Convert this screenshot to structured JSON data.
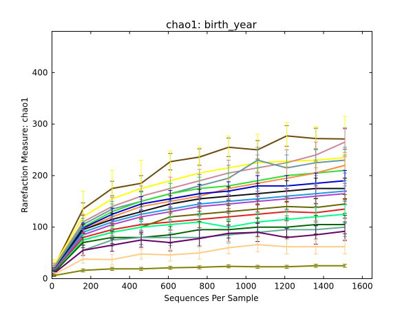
{
  "chart_data": {
    "type": "line",
    "title": "chao1: birth_year",
    "xlabel": "Sequences Per Sample",
    "ylabel": "Rarefaction Measure: chao1",
    "xlim": [
      0,
      1650
    ],
    "ylim": [
      0,
      480
    ],
    "xticks": [
      0,
      200,
      400,
      600,
      800,
      1000,
      1200,
      1400,
      1600
    ],
    "yticks": [
      0,
      100,
      200,
      300,
      400
    ],
    "grid": false,
    "legend": "none",
    "x": [
      10,
      160,
      310,
      460,
      610,
      760,
      910,
      1060,
      1210,
      1360,
      1510
    ],
    "series": [
      {
        "color": "#6b4a0a",
        "values": [
          22,
          135,
          175,
          185,
          227,
          236,
          255,
          250,
          277,
          272,
          271
        ],
        "err": [
          8,
          12,
          14,
          15,
          16,
          16,
          18,
          18,
          20,
          20,
          20
        ]
      },
      {
        "color": "#ffff00",
        "values": [
          25,
          120,
          155,
          175,
          190,
          205,
          215,
          225,
          228,
          230,
          235
        ],
        "err": [
          12,
          50,
          55,
          55,
          58,
          50,
          62,
          55,
          75,
          65,
          80
        ]
      },
      {
        "color": "#cc8899",
        "values": [
          22,
          110,
          140,
          160,
          175,
          190,
          205,
          215,
          225,
          240,
          265
        ],
        "err": [
          8,
          15,
          18,
          20,
          22,
          22,
          25,
          25,
          25,
          25,
          28
        ]
      },
      {
        "color": "#669999",
        "values": [
          20,
          105,
          135,
          150,
          165,
          180,
          195,
          230,
          215,
          225,
          230
        ],
        "err": [
          6,
          12,
          15,
          18,
          20,
          22,
          25,
          25,
          25,
          25,
          25
        ]
      },
      {
        "color": "#33dd33",
        "values": [
          18,
          100,
          130,
          150,
          165,
          175,
          180,
          190,
          200,
          205,
          210
        ],
        "err": [
          6,
          12,
          15,
          18,
          20,
          22,
          25,
          25,
          25,
          25,
          30
        ]
      },
      {
        "color": "#ff8844",
        "values": [
          18,
          95,
          120,
          140,
          150,
          160,
          175,
          185,
          195,
          205,
          220
        ],
        "err": [
          6,
          10,
          12,
          14,
          16,
          18,
          20,
          22,
          22,
          22,
          25
        ]
      },
      {
        "color": "#0000cc",
        "values": [
          16,
          98,
          125,
          145,
          155,
          165,
          170,
          180,
          180,
          185,
          190
        ],
        "err": [
          5,
          10,
          12,
          14,
          16,
          18,
          18,
          20,
          20,
          20,
          20
        ]
      },
      {
        "color": "#111111",
        "values": [
          15,
          95,
          115,
          130,
          145,
          155,
          160,
          165,
          170,
          175,
          175
        ],
        "err": [
          5,
          10,
          12,
          14,
          16,
          18,
          18,
          20,
          20,
          20,
          20
        ]
      },
      {
        "color": "#2299dd",
        "values": [
          15,
          90,
          110,
          125,
          135,
          145,
          150,
          155,
          160,
          165,
          170
        ],
        "err": [
          5,
          10,
          12,
          14,
          16,
          18,
          18,
          20,
          20,
          20,
          20
        ]
      },
      {
        "color": "#aa44cc",
        "values": [
          14,
          85,
          105,
          120,
          130,
          140,
          145,
          150,
          155,
          160,
          165
        ],
        "err": [
          5,
          10,
          12,
          14,
          16,
          18,
          18,
          20,
          20,
          20,
          20
        ]
      },
      {
        "color": "#dd2222",
        "values": [
          12,
          80,
          95,
          105,
          110,
          115,
          120,
          125,
          130,
          128,
          135
        ],
        "err": [
          5,
          10,
          12,
          14,
          16,
          16,
          16,
          18,
          18,
          18,
          18
        ]
      },
      {
        "color": "#666600",
        "values": [
          10,
          75,
          90,
          100,
          120,
          125,
          130,
          135,
          140,
          138,
          145
        ],
        "err": [
          5,
          10,
          12,
          14,
          16,
          16,
          16,
          18,
          18,
          18,
          18
        ]
      },
      {
        "color": "#00ff88",
        "values": [
          12,
          75,
          90,
          100,
          105,
          110,
          100,
          110,
          115,
          120,
          125
        ],
        "err": [
          5,
          10,
          12,
          14,
          16,
          16,
          16,
          18,
          18,
          18,
          18
        ]
      },
      {
        "color": "#006600",
        "values": [
          12,
          70,
          80,
          80,
          85,
          95,
          95,
          100,
          100,
          105,
          105
        ],
        "err": [
          5,
          10,
          12,
          14,
          16,
          16,
          16,
          18,
          18,
          18,
          18
        ]
      },
      {
        "color": "#66aa99",
        "values": [
          10,
          55,
          75,
          80,
          80,
          80,
          85,
          90,
          95,
          95,
          100
        ],
        "err": [
          5,
          10,
          12,
          14,
          16,
          16,
          16,
          18,
          18,
          18,
          18
        ]
      },
      {
        "color": "#660066",
        "values": [
          10,
          55,
          65,
          75,
          70,
          78,
          88,
          90,
          80,
          85,
          92
        ],
        "err": [
          5,
          10,
          12,
          14,
          16,
          16,
          16,
          18,
          18,
          18,
          18
        ]
      },
      {
        "color": "#ffcc88",
        "values": [
          8,
          38,
          37,
          48,
          46,
          50,
          60,
          66,
          62,
          62,
          62
        ],
        "err": [
          4,
          8,
          10,
          10,
          12,
          12,
          12,
          14,
          14,
          14,
          14
        ]
      },
      {
        "color": "#808000",
        "values": [
          6,
          16,
          19,
          19,
          21,
          22,
          24,
          23,
          23,
          25,
          25
        ],
        "err": [
          2,
          3,
          3,
          3,
          3,
          3,
          3,
          3,
          3,
          3,
          3
        ]
      }
    ]
  }
}
